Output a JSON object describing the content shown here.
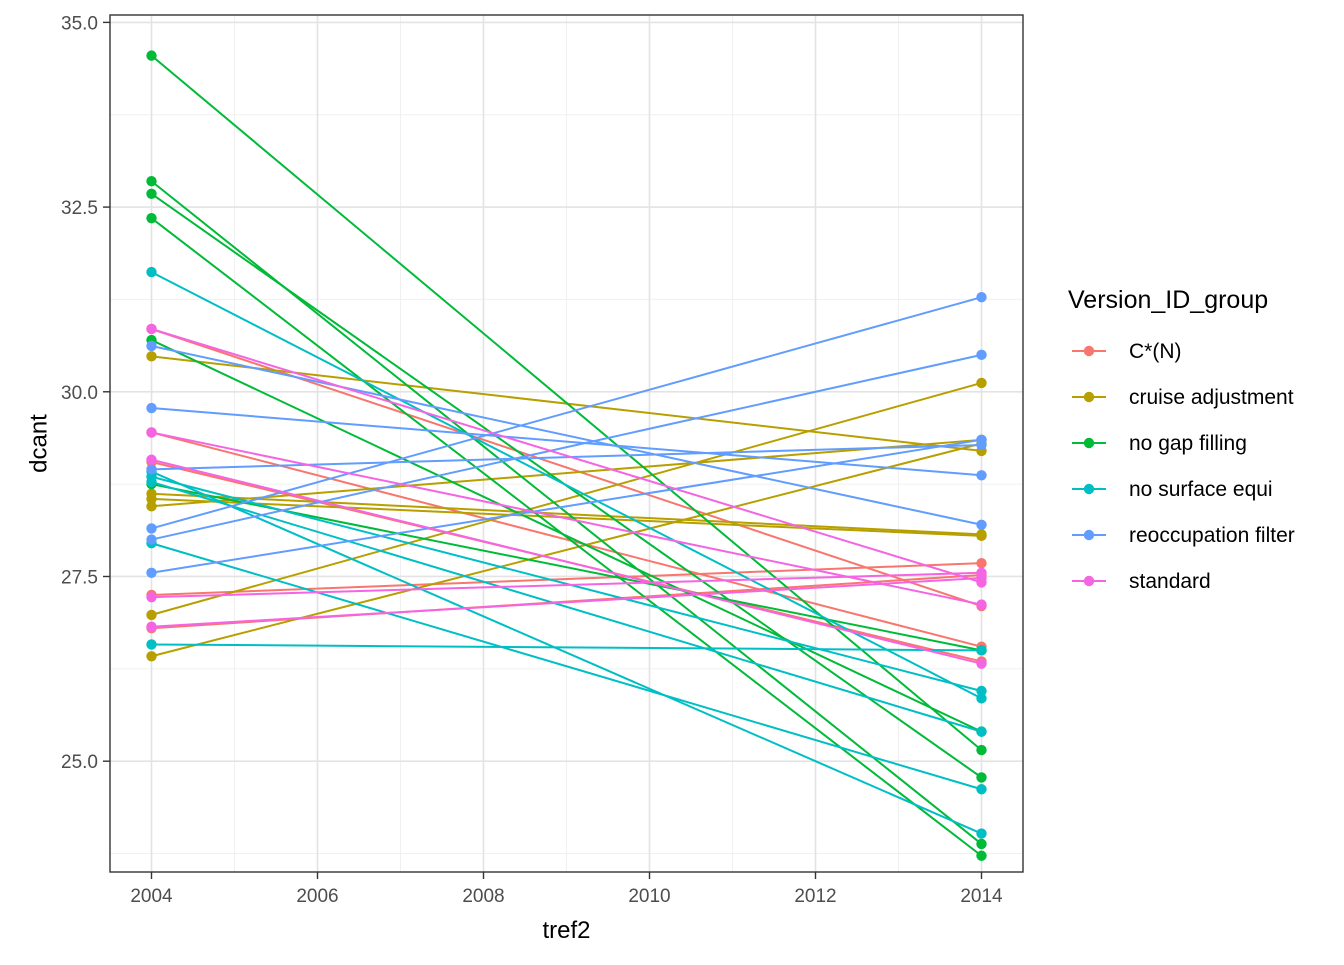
{
  "chart_data": {
    "type": "line",
    "title": "",
    "xlabel": "tref2",
    "ylabel": "dcant",
    "xlim": [
      2003.5,
      2014.5
    ],
    "ylim": [
      23.5,
      35.1
    ],
    "x_ticks": [
      2004,
      2006,
      2008,
      2010,
      2012,
      2014
    ],
    "y_ticks": [
      25.0,
      27.5,
      30.0,
      32.5,
      35.0
    ],
    "y_tick_labels": [
      "25.0",
      "27.5",
      "30.0",
      "32.5",
      "35.0"
    ],
    "grid": true,
    "legend": {
      "title": "Version_ID_group",
      "position": "right"
    },
    "series": [
      {
        "name": "C*(N)",
        "color": "#F8766D",
        "lines": [
          [
            [
              2004,
              30.85
            ],
            [
              2014,
              27.1
            ]
          ],
          [
            [
              2004,
              29.45
            ],
            [
              2014,
              26.55
            ]
          ],
          [
            [
              2004,
              29.05
            ],
            [
              2014,
              26.35
            ]
          ],
          [
            [
              2004,
              27.25
            ],
            [
              2014,
              27.68
            ]
          ],
          [
            [
              2004,
              26.8
            ],
            [
              2014,
              27.52
            ]
          ]
        ]
      },
      {
        "name": "cruise adjustment",
        "color": "#B79F00",
        "lines": [
          [
            [
              2004,
              30.48
            ],
            [
              2014,
              29.2
            ]
          ],
          [
            [
              2004,
              28.62
            ],
            [
              2014,
              28.07
            ]
          ],
          [
            [
              2004,
              28.55
            ],
            [
              2014,
              28.05
            ]
          ],
          [
            [
              2004,
              28.45
            ],
            [
              2014,
              29.35
            ]
          ],
          [
            [
              2004,
              26.98
            ],
            [
              2014,
              30.12
            ]
          ],
          [
            [
              2004,
              26.42
            ],
            [
              2014,
              29.3
            ]
          ]
        ]
      },
      {
        "name": "no gap filling",
        "color": "#00BA38",
        "lines": [
          [
            [
              2004,
              34.55
            ],
            [
              2014,
              25.15
            ]
          ],
          [
            [
              2004,
              32.85
            ],
            [
              2014,
              23.88
            ]
          ],
          [
            [
              2004,
              32.68
            ],
            [
              2014,
              24.78
            ]
          ],
          [
            [
              2004,
              32.35
            ],
            [
              2014,
              23.72
            ]
          ],
          [
            [
              2004,
              30.7
            ],
            [
              2014,
              25.4
            ]
          ],
          [
            [
              2004,
              28.75
            ],
            [
              2014,
              26.5
            ]
          ]
        ]
      },
      {
        "name": "no surface equi",
        "color": "#00BFC4",
        "lines": [
          [
            [
              2004,
              31.62
            ],
            [
              2014,
              25.85
            ]
          ],
          [
            [
              2004,
              28.92
            ],
            [
              2014,
              24.02
            ]
          ],
          [
            [
              2004,
              28.85
            ],
            [
              2014,
              25.95
            ]
          ],
          [
            [
              2004,
              28.78
            ],
            [
              2014,
              25.4
            ]
          ],
          [
            [
              2004,
              27.95
            ],
            [
              2014,
              24.62
            ]
          ],
          [
            [
              2004,
              26.58
            ],
            [
              2014,
              26.5
            ]
          ]
        ]
      },
      {
        "name": "reoccupation filter",
        "color": "#619CFF",
        "lines": [
          [
            [
              2004,
              30.62
            ],
            [
              2014,
              28.2
            ]
          ],
          [
            [
              2004,
              29.78
            ],
            [
              2014,
              28.87
            ]
          ],
          [
            [
              2004,
              28.95
            ],
            [
              2014,
              29.28
            ]
          ],
          [
            [
              2004,
              28.15
            ],
            [
              2014,
              31.28
            ]
          ],
          [
            [
              2004,
              28.0
            ],
            [
              2014,
              30.5
            ]
          ],
          [
            [
              2004,
              27.55
            ],
            [
              2014,
              29.35
            ]
          ]
        ]
      },
      {
        "name": "standard",
        "color": "#F564E3",
        "lines": [
          [
            [
              2004,
              30.85
            ],
            [
              2014,
              27.42
            ]
          ],
          [
            [
              2004,
              29.45
            ],
            [
              2014,
              27.12
            ]
          ],
          [
            [
              2004,
              29.08
            ],
            [
              2014,
              26.32
            ]
          ],
          [
            [
              2004,
              27.22
            ],
            [
              2014,
              27.55
            ]
          ],
          [
            [
              2004,
              26.82
            ],
            [
              2014,
              27.48
            ]
          ]
        ]
      }
    ]
  }
}
